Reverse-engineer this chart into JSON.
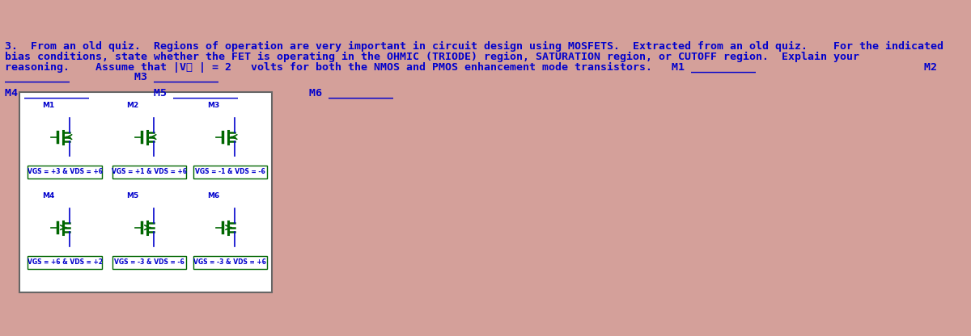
{
  "bg_color": "#d4a09a",
  "panel_bg": "#ffffff",
  "text_color": "#0000cc",
  "green_color": "#006600",
  "title_line1": "3.  From an old quiz.  Regions of operation are very important in circuit design using MOSFETS.  Extracted from an old quiz.    For the indicated",
  "title_line2": "bias conditions, state whether the FET is operating in the OHMIC (TRIODE) region, SATURATION region, or CUTOFF region.  Explain your",
  "title_line3": "reasoning.    Assume that |V⁔ | = 2   volts for both the NMOS and PMOS enhancement mode transistors.   M1 __________                          M2",
  "title_line4": "__________          M3 __________",
  "answer_line": "M4 __________          M5 __________           M6 __________",
  "transistors": [
    {
      "label": "M1",
      "vgs": "VGS = +3 & VDS = +6",
      "col": 0,
      "row": 0,
      "type": "nmos"
    },
    {
      "label": "M2",
      "vgs": "VGS = +1 & VDS = +6",
      "col": 1,
      "row": 0,
      "type": "nmos"
    },
    {
      "label": "M3",
      "vgs": "VGS = -1 & VDS = -6",
      "col": 2,
      "row": 0,
      "type": "nmos"
    },
    {
      "label": "M4",
      "vgs": "VGS = +6 & VDS = +2",
      "col": 0,
      "row": 1,
      "type": "pmos"
    },
    {
      "label": "M5",
      "vgs": "VGS = -3 & VDS = -6",
      "col": 1,
      "row": 1,
      "type": "pmos"
    },
    {
      "label": "M6",
      "vgs": "VGS = -3 & VDS = +6",
      "col": 2,
      "row": 1,
      "type": "pmos"
    }
  ]
}
